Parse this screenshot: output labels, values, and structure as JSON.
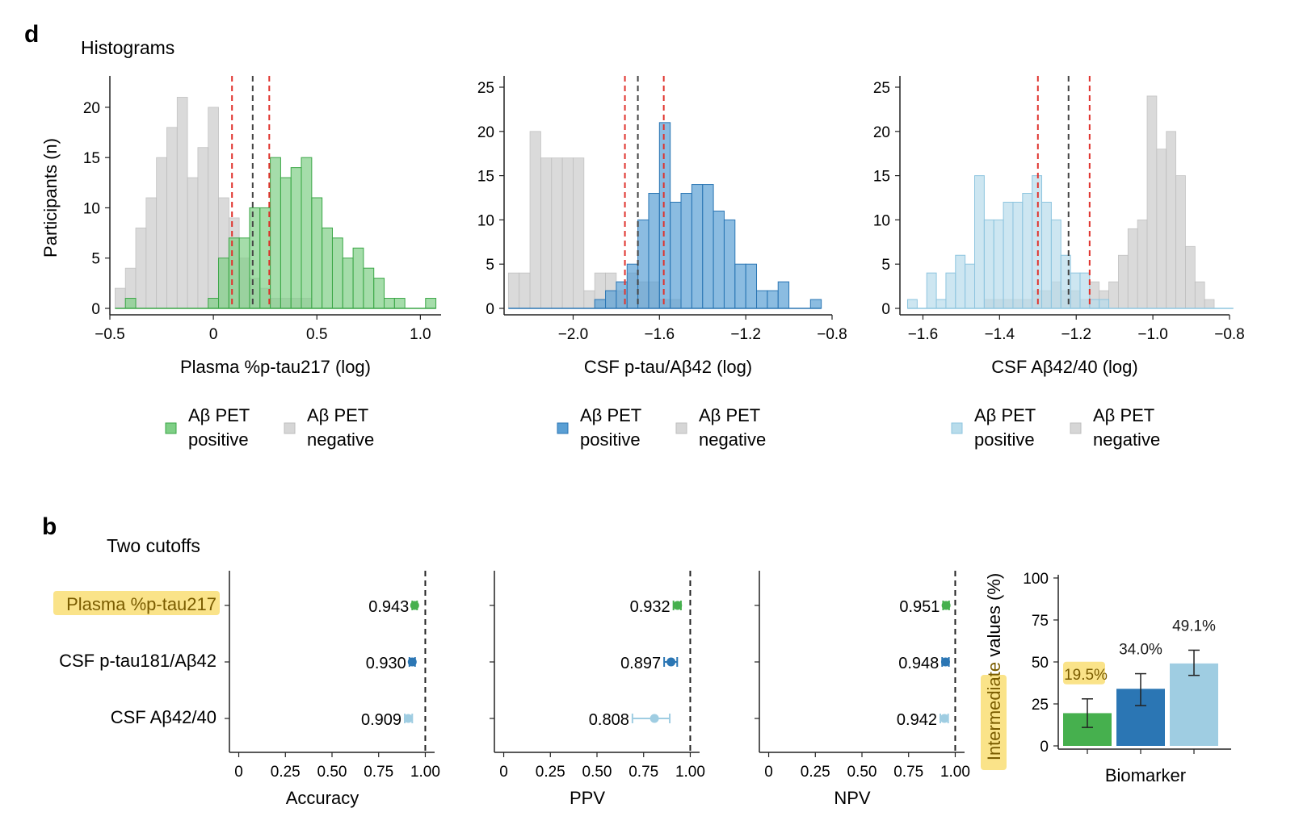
{
  "colors": {
    "green": "#7fcf86",
    "green_dark": "#3aa646",
    "blue": "#5a9fd4",
    "blue_dark": "#2b76b4",
    "light_blue": "#b8dceb",
    "light_blue_dark": "#8ec5df",
    "gray": "#d6d6d6",
    "gray_edge": "#bdbdbd",
    "cutoff_red": "#e0332d",
    "cutoff_black": "#444444",
    "highlight": "#f9de74",
    "bar_green": "#46b04e",
    "bar_blue": "#2b76b4",
    "bar_light": "#9fcde2"
  },
  "panel_d": {
    "label": "d",
    "title": "Histograms",
    "ylabel": "Participants (n)",
    "legend_pos_label": [
      "Aβ PET",
      "positive"
    ],
    "legend_neg_label": [
      "Aβ PET",
      "negative"
    ]
  },
  "panel_b": {
    "label": "b",
    "title": "Two cutoffs",
    "biomarkers": [
      "Plasma %p-tau217",
      "CSF p-tau181/Aβ42",
      "CSF Aβ42/40"
    ]
  },
  "chart_data": [
    {
      "type": "histogram",
      "id": "hist1",
      "xlabel": "Plasma %p-tau217 (log)",
      "ylabel": "Participants (n)",
      "xlim": [
        -0.5,
        1.1
      ],
      "ylim": [
        0,
        22
      ],
      "xticks": [
        -0.5,
        0,
        0.5,
        1.0
      ],
      "xtick_labels": [
        "−0.5",
        "0",
        "0.5",
        "1.0"
      ],
      "yticks": [
        0,
        5,
        10,
        15,
        20
      ],
      "bin_start": -0.475,
      "bin_width": 0.05,
      "series": [
        {
          "name": "Aβ PET negative",
          "values": [
            2,
            4,
            8,
            11,
            15,
            18,
            21,
            13,
            16,
            20,
            11,
            9,
            5,
            3,
            2,
            1,
            1,
            1,
            1,
            0,
            0,
            0,
            0,
            0,
            0,
            0,
            0,
            0,
            0,
            0,
            0
          ]
        },
        {
          "name": "Aβ PET positive",
          "values": [
            0,
            1,
            0,
            0,
            0,
            0,
            0,
            0,
            0,
            1,
            5,
            7,
            7,
            10,
            10,
            15,
            13,
            14,
            15,
            11,
            8,
            7,
            5,
            6,
            4,
            3,
            1,
            1,
            0,
            0,
            1
          ]
        }
      ],
      "cutoffs": [
        {
          "value": 0.09,
          "style": "red"
        },
        {
          "value": 0.19,
          "style": "black"
        },
        {
          "value": 0.27,
          "style": "red"
        }
      ],
      "legend": [
        "Aβ PET positive",
        "Aβ PET negative"
      ]
    },
    {
      "type": "histogram",
      "id": "hist2",
      "xlabel": "CSF p-tau/Aβ42 (log)",
      "ylabel": "",
      "xlim": [
        -2.32,
        -0.8
      ],
      "ylim": [
        0,
        25
      ],
      "xticks": [
        -2.0,
        -1.6,
        -1.2,
        -0.8
      ],
      "xtick_labels": [
        "−2.0",
        "−1.6",
        "−1.2",
        "−0.8"
      ],
      "yticks": [
        0,
        5,
        10,
        15,
        20,
        25
      ],
      "bin_start": -2.3,
      "bin_width": 0.05,
      "series": [
        {
          "name": "Aβ PET negative",
          "values": [
            4,
            4,
            20,
            17,
            17,
            17,
            17,
            2,
            4,
            4,
            2,
            4,
            3,
            3,
            1,
            1,
            0,
            0,
            0,
            0,
            0,
            0,
            0,
            0,
            0,
            0,
            0,
            0,
            0
          ]
        },
        {
          "name": "Aβ PET positive",
          "values": [
            0,
            0,
            0,
            0,
            0,
            0,
            0,
            0,
            1,
            2,
            3,
            5,
            10,
            13,
            21,
            12,
            13,
            14,
            14,
            11,
            10,
            5,
            5,
            2,
            2,
            3,
            0,
            0,
            1
          ]
        }
      ],
      "cutoffs": [
        {
          "value": -1.76,
          "style": "red"
        },
        {
          "value": -1.7,
          "style": "black"
        },
        {
          "value": -1.58,
          "style": "red"
        }
      ],
      "legend": [
        "Aβ PET positive",
        "Aβ PET negative"
      ]
    },
    {
      "type": "histogram",
      "id": "hist3",
      "xlabel": "CSF Aβ42/40 (log)",
      "ylabel": "",
      "xlim": [
        -1.66,
        -0.8
      ],
      "ylim": [
        0,
        25
      ],
      "xticks": [
        -1.6,
        -1.4,
        -1.2,
        -1.0,
        -0.8
      ],
      "xtick_labels": [
        "−1.6",
        "−1.4",
        "−1.2",
        "−1.0",
        "−0.8"
      ],
      "yticks": [
        0,
        5,
        10,
        15,
        20,
        25
      ],
      "bin_start": -1.64,
      "bin_width": 0.025,
      "series": [
        {
          "name": "Aβ PET negative",
          "values": [
            0,
            0,
            0,
            0,
            0,
            0,
            0,
            0,
            1,
            1,
            1,
            1,
            1,
            2,
            2,
            3,
            2,
            2,
            1,
            3,
            2,
            3,
            6,
            9,
            10,
            24,
            18,
            20,
            15,
            7,
            3,
            1,
            0,
            0
          ]
        },
        {
          "name": "Aβ PET positive",
          "values": [
            1,
            0,
            4,
            1,
            4,
            6,
            5,
            15,
            10,
            10,
            12,
            12,
            13,
            15,
            12,
            10,
            6,
            4,
            4,
            1,
            1,
            0,
            0,
            0,
            0,
            0,
            0,
            0,
            0,
            0,
            0,
            0,
            0,
            0
          ]
        }
      ],
      "cutoffs": [
        {
          "value": -1.3,
          "style": "red"
        },
        {
          "value": -1.22,
          "style": "black"
        },
        {
          "value": -1.165,
          "style": "red"
        }
      ],
      "legend": [
        "Aβ PET positive",
        "Aβ PET negative"
      ]
    },
    {
      "type": "forest",
      "id": "accuracy",
      "xlabel": "Accuracy",
      "xlim": [
        -0.05,
        1.05
      ],
      "xticks": [
        0,
        0.25,
        0.5,
        0.75,
        1.0
      ],
      "xtick_labels": [
        "0",
        "0.25",
        "0.50",
        "0.75",
        "1.00"
      ],
      "points": [
        {
          "label": "0.943",
          "value": 0.943,
          "lo": 0.93,
          "hi": 0.956
        },
        {
          "label": "0.930",
          "value": 0.93,
          "lo": 0.915,
          "hi": 0.945
        },
        {
          "label": "0.909",
          "value": 0.909,
          "lo": 0.89,
          "hi": 0.93
        }
      ]
    },
    {
      "type": "forest",
      "id": "ppv",
      "xlabel": "PPV",
      "xlim": [
        -0.05,
        1.05
      ],
      "xticks": [
        0,
        0.25,
        0.5,
        0.75,
        1.0
      ],
      "xtick_labels": [
        "0",
        "0.25",
        "0.50",
        "0.75",
        "1.00"
      ],
      "points": [
        {
          "label": "0.932",
          "value": 0.932,
          "lo": 0.91,
          "hi": 0.95
        },
        {
          "label": "0.897",
          "value": 0.897,
          "lo": 0.86,
          "hi": 0.93
        },
        {
          "label": "0.808",
          "value": 0.808,
          "lo": 0.69,
          "hi": 0.89
        }
      ]
    },
    {
      "type": "forest",
      "id": "npv",
      "xlabel": "NPV",
      "xlim": [
        -0.05,
        1.05
      ],
      "xticks": [
        0,
        0.25,
        0.5,
        0.75,
        1.0
      ],
      "xtick_labels": [
        "0",
        "0.25",
        "0.50",
        "0.75",
        "1.00"
      ],
      "points": [
        {
          "label": "0.951",
          "value": 0.951,
          "lo": 0.935,
          "hi": 0.967
        },
        {
          "label": "0.948",
          "value": 0.948,
          "lo": 0.93,
          "hi": 0.966
        },
        {
          "label": "0.942",
          "value": 0.942,
          "lo": 0.92,
          "hi": 0.962
        }
      ]
    },
    {
      "type": "bar",
      "id": "intermediate",
      "xlabel": "Biomarker",
      "ylabel": "Intermediate values (%)",
      "ylabel_parts": [
        "Intermediate",
        " values (%)"
      ],
      "ylim": [
        0,
        100
      ],
      "yticks": [
        0,
        25,
        50,
        75,
        100
      ],
      "values": [
        19.5,
        34.0,
        49.1
      ],
      "errors": [
        [
          11,
          28
        ],
        [
          24,
          43
        ],
        [
          42,
          57
        ]
      ],
      "labels": [
        "19.5%",
        "34.0%",
        "49.1%"
      ]
    }
  ]
}
